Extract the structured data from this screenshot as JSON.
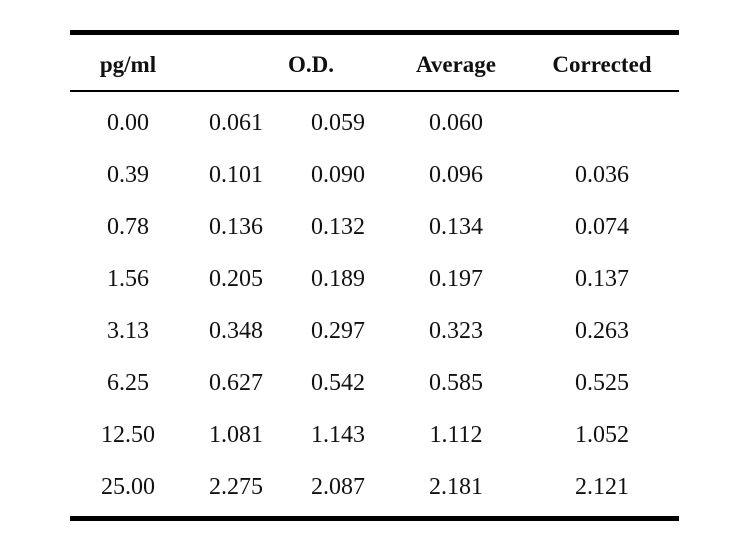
{
  "table": {
    "headers": {
      "concentration": "pg/ml",
      "od": "O.D.",
      "average": "Average",
      "corrected": "Corrected"
    },
    "rows": [
      {
        "conc": "0.00",
        "od1": "0.061",
        "od2": "0.059",
        "avg": "0.060",
        "corr": ""
      },
      {
        "conc": "0.39",
        "od1": "0.101",
        "od2": "0.090",
        "avg": "0.096",
        "corr": "0.036"
      },
      {
        "conc": "0.78",
        "od1": "0.136",
        "od2": "0.132",
        "avg": "0.134",
        "corr": "0.074"
      },
      {
        "conc": "1.56",
        "od1": "0.205",
        "od2": "0.189",
        "avg": "0.197",
        "corr": "0.137"
      },
      {
        "conc": "3.13",
        "od1": "0.348",
        "od2": "0.297",
        "avg": "0.323",
        "corr": "0.263"
      },
      {
        "conc": "6.25",
        "od1": "0.627",
        "od2": "0.542",
        "avg": "0.585",
        "corr": "0.525"
      },
      {
        "conc": "12.50",
        "od1": "1.081",
        "od2": "1.143",
        "avg": "1.112",
        "corr": "1.052"
      },
      {
        "conc": "25.00",
        "od1": "2.275",
        "od2": "2.087",
        "avg": "2.181",
        "corr": "2.121"
      }
    ]
  }
}
